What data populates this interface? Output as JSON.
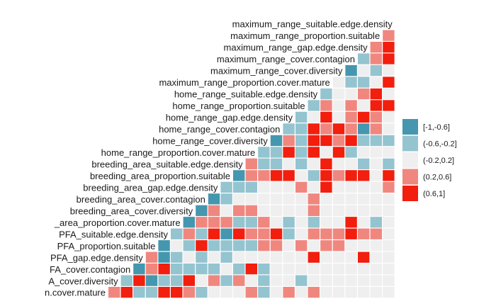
{
  "chart_data": {
    "type": "heatmap",
    "title": "",
    "xlabel": "",
    "ylabel": "",
    "variables": [
      "maximum_range_suitable.edge.density",
      "maximum_range_proportion.suitable",
      "maximum_range_gap.edge.density",
      "maximum_range_cover.contagion",
      "maximum_range_cover.diversity",
      "maximum_range_proportion.cover.mature",
      "home_range_suitable.edge.density",
      "home_range_proportion.suitable",
      "home_range_gap.edge.density",
      "home_range_cover.contagion",
      "home_range_cover.diversity",
      "home_range_proportion.cover.mature",
      "breeding_area_suitable.edge.density",
      "breeding_area_proportion.suitable",
      "breeding_area_gap.edge.density",
      "breeding_area_cover.contagion",
      "breeding_area_cover.diversity",
      "breeding_area_proportion.cover.mature",
      "PFA_suitable.edge.density",
      "PFA_proportion.suitable",
      "PFA_gap.edge.density",
      "PFA_cover.contagion",
      "PFA_cover.diversity",
      "PFA_proportion.cover.mature"
    ],
    "display_labels": [
      "maximum_range_suitable.edge.density",
      "maximum_range_proportion.suitable",
      "maximum_range_gap.edge.density",
      "maximum_range_cover.contagion",
      "maximum_range_cover.diversity",
      "maximum_range_proportion.cover.mature",
      "home_range_suitable.edge.density",
      "home_range_proportion.suitable",
      "home_range_gap.edge.density",
      "home_range_cover.contagion",
      "home_range_cover.diversity",
      "home_range_proportion.cover.mature",
      "breeding_area_suitable.edge.density",
      "breeding_area_proportion.suitable",
      "breeding_area_gap.edge.density",
      "breeding_area_cover.contagion",
      "breeding_area_cover.diversity",
      "_area_proportion.cover.mature",
      "PFA_suitable.edge.density",
      "PFA_proportion.suitable",
      "PFA_gap.edge.density",
      "FA_cover.contagion",
      "A_cover.diversity",
      "n.cover.mature"
    ],
    "legend": {
      "placement": "right",
      "bins": [
        {
          "label": "[-1,-0.6]",
          "color": "#4497af"
        },
        {
          "label": "(-0.6,-0.2]",
          "color": "#94c4d0"
        },
        {
          "label": "(-0.2,0.2]",
          "color": "#efefef"
        },
        {
          "label": "(0.2,0.6]",
          "color": "#f0877f"
        },
        {
          "label": "(0.6,1]",
          "color": "#f21e0e"
        }
      ]
    },
    "matrix_bins": [
      "",
      "3",
      "34",
      "134",
      "0212",
      "21124",
      "122342",
      "1323244",
      "12423432",
      "114343032",
      "0314434111",
      "11414241222",
      "311212422121",
      "0334421434424",
      "11122232422223",
      "012222223222222",
      "0323322223222222",
      "03331132121224212",
      "131404334123334332",
      "0214111133232332222",
      "30121212222224222422",
      "034111121412222222222",
      "1401142313212212222222",
      "34114431222312323222222"
    ]
  }
}
